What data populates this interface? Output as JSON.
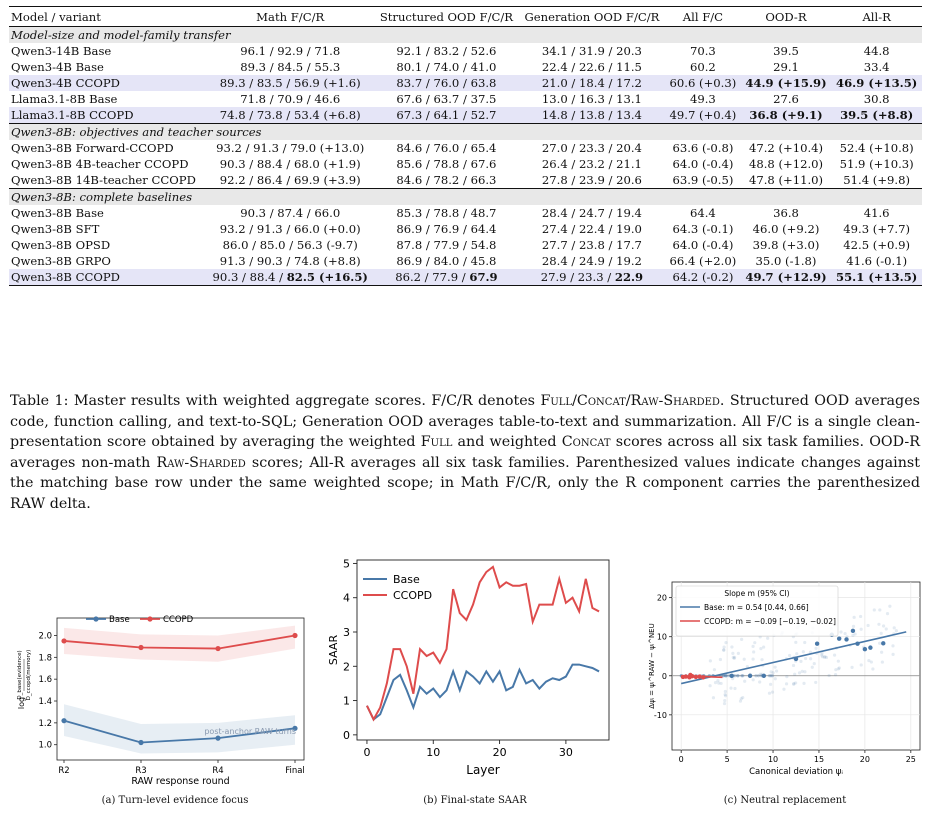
{
  "table": {
    "headers": [
      "Model / variant",
      "Math F/C/R",
      "Structured OOD F/C/R",
      "Generation OOD F/C/R",
      "All F/C",
      "OOD-R",
      "All-R"
    ],
    "sections": [
      {
        "title": "Model-size and model-family transfer",
        "rows": [
          {
            "cells": [
              "Qwen3-14B Base",
              "96.1 / 92.9 / 71.8",
              "92.1 / 83.2 / 52.6",
              "34.1 / 31.9 / 20.3",
              "70.3",
              "39.5",
              "44.8"
            ],
            "hl": false
          },
          {
            "cells": [
              "Qwen3-4B Base",
              "89.3 / 84.5 / 55.3",
              "80.1 / 74.0 / 41.0",
              "22.4 / 22.6 / 11.5",
              "60.2",
              "29.1",
              "33.4"
            ],
            "hl": false
          },
          {
            "cells": [
              "Qwen3-4B CCOPD",
              "89.3 / 83.5 / 56.9 (+1.6)",
              "83.7 / 76.0 / 63.8",
              "21.0 / 18.4 / 17.2",
              "60.6 (+0.3)",
              "44.9 (+15.9)",
              "46.9 (+13.5)"
            ],
            "hl": true,
            "bold": [
              5,
              6
            ]
          },
          {
            "cells": [
              "Llama3.1-8B Base",
              "71.8 / 70.9 / 46.6",
              "67.6 / 63.7 / 37.5",
              "13.0 / 16.3 / 13.1",
              "49.3",
              "27.6",
              "30.8"
            ],
            "hl": false
          },
          {
            "cells": [
              "Llama3.1-8B CCOPD",
              "74.8 / 73.8 / 53.4 (+6.8)",
              "67.3 / 64.1 / 52.7",
              "14.8 / 13.8 / 13.4",
              "49.7 (+0.4)",
              "36.8 (+9.1)",
              "39.5 (+8.8)"
            ],
            "hl": true,
            "bold": [
              5,
              6
            ]
          }
        ]
      },
      {
        "title": "Qwen3-8B: objectives and teacher sources",
        "rows": [
          {
            "cells": [
              "Qwen3-8B Forward-CCOPD",
              "93.2 / 91.3 / 79.0 (+13.0)",
              "84.6 / 76.0 / 65.4",
              "27.0 / 23.3 / 20.4",
              "63.6 (-0.8)",
              "47.2 (+10.4)",
              "52.4 (+10.8)"
            ],
            "hl": false
          },
          {
            "cells": [
              "Qwen3-8B 4B-teacher CCOPD",
              "90.3 / 88.4 / 68.0 (+1.9)",
              "85.6 / 78.8 / 67.6",
              "26.4 / 23.2 / 21.1",
              "64.0 (-0.4)",
              "48.8 (+12.0)",
              "51.9 (+10.3)"
            ],
            "hl": false
          },
          {
            "cells": [
              "Qwen3-8B 14B-teacher CCOPD",
              "92.2 / 86.4 / 69.9 (+3.9)",
              "84.6 / 78.2 / 66.3",
              "27.8 / 23.9 / 20.6",
              "63.9 (-0.5)",
              "47.8 (+11.0)",
              "51.4 (+9.8)"
            ],
            "hl": false
          }
        ]
      },
      {
        "title": "Qwen3-8B: complete baselines",
        "rows": [
          {
            "cells": [
              "Qwen3-8B Base",
              "90.3 / 87.4 / 66.0",
              "85.3 / 78.8 / 48.7",
              "28.4 / 24.7 / 19.4",
              "64.4",
              "36.8",
              "41.6"
            ],
            "hl": false
          },
          {
            "cells": [
              "Qwen3-8B SFT",
              "93.2 / 91.3 / 66.0 (+0.0)",
              "86.9 / 76.9 / 64.4",
              "27.4 / 22.4 / 19.0",
              "64.3 (-0.1)",
              "46.0 (+9.2)",
              "49.3 (+7.7)"
            ],
            "hl": false
          },
          {
            "cells": [
              "Qwen3-8B OPSD",
              "86.0 / 85.0 / 56.3 (-9.7)",
              "87.8 / 77.9 / 54.8",
              "27.7 / 23.8 / 17.7",
              "64.0 (-0.4)",
              "39.8 (+3.0)",
              "42.5 (+0.9)"
            ],
            "hl": false
          },
          {
            "cells": [
              "Qwen3-8B GRPO",
              "91.3 / 90.3 / 74.8 (+8.8)",
              "86.9 / 84.0 / 45.8",
              "28.4 / 24.9 / 19.2",
              "66.4 (+2.0)",
              "35.0 (-1.8)",
              "41.6 (-0.1)"
            ],
            "hl": false
          },
          {
            "cells": [
              "Qwen3-8B CCOPD",
              "90.3 / 88.4 / ",
              "86.2 / 77.9 / ",
              "27.9 / 23.3 / ",
              "64.2 (-0.2)",
              "49.7 (+12.9)",
              "55.1 (+13.5)"
            ],
            "hl": true,
            "bold": [
              5,
              6
            ],
            "tails": {
              "1": "82.5 (+16.5)",
              "2": "67.9",
              "3": "22.9"
            }
          }
        ]
      }
    ]
  },
  "caption": {
    "p1": "Table 1: Master results with weighted aggregate scores. F/C/R denotes ",
    "full": "Full",
    "s1": "/",
    "concat": "Concat",
    "s2": "/",
    "raw": "Raw-Sharded",
    "p2": ". Structured OOD averages code, function calling, and text-to-SQL; Generation OOD averages table-to-text and summarization. All F/C is a single clean-presentation score obtained by averaging the weighted ",
    "full2": "Full",
    "p3": " and weighted ",
    "concat2": "Concat",
    "p4": " scores across all six task families. OOD-R averages non-math ",
    "raw2": "Raw-Sharded",
    "p5": " scores; All-R averages all six task families. Parenthesized values indicate changes against the matching base row under the same weighted scope; in Math F/C/R, only the R component carries the parenthesized RAW delta."
  },
  "figures": {
    "a": {
      "caption": "(a) Turn-level evidence focus",
      "xlabel": "RAW response round",
      "ylabel": "log Dbase(evidence)/D(caused memory)",
      "ylabel_main": "log",
      "ylabel_frac_top": "D_base(evidence)",
      "ylabel_frac_bot": "D_ccopd(memory)",
      "annotation": "post-anchor RAW turns"
    },
    "b": {
      "caption": "(b) Final-state SAAR",
      "xlabel": "Layer",
      "ylabel": "SAAR"
    },
    "c": {
      "caption": "(c) Neutral replacement",
      "xlabel": "Canonical deviation ψᵢ",
      "ylabel": "Δψᵢ = ψᵢ^RAW − ψᵢ^NEU",
      "legend_title": "Slope m (95% CI)",
      "legend_base": "Base: m = 0.54 [0.44, 0.66]",
      "legend_ccopd": "CCOPD: m = −0.09 [−0.19, −0.02]"
    }
  },
  "chart_data": [
    {
      "type": "line",
      "title": "",
      "xlabel": "RAW response round",
      "ylabel": "log ratio",
      "categories": [
        "R2",
        "R3",
        "R4",
        "Final"
      ],
      "series": [
        {
          "name": "Base",
          "values": [
            1.22,
            1.02,
            1.06,
            1.15
          ]
        },
        {
          "name": "CCOPD",
          "values": [
            1.95,
            1.89,
            1.88,
            2.0
          ]
        }
      ],
      "band_base": {
        "lo": [
          1.08,
          0.92,
          0.93,
          1.0
        ],
        "hi": [
          1.37,
          1.19,
          1.2,
          1.27
        ]
      },
      "band_ccopd": {
        "lo": [
          1.83,
          1.78,
          1.76,
          1.88
        ],
        "hi": [
          2.07,
          2.01,
          2.0,
          2.09
        ]
      },
      "ylim": [
        0.86,
        2.16
      ],
      "yticks": [
        1.0,
        1.2,
        1.4,
        1.6,
        1.8,
        2.0
      ],
      "yticklabels": [
        "1.0",
        "1.2",
        "1.4",
        "1.6",
        "1.8",
        "2.0"
      ],
      "colors": {
        "Base": "#4878a8",
        "CCOPD": "#de4c4c"
      },
      "legend": "top"
    },
    {
      "type": "line",
      "title": "",
      "xlabel": "Layer",
      "ylabel": "SAAR",
      "x": [
        0,
        1,
        2,
        3,
        4,
        5,
        6,
        7,
        8,
        9,
        10,
        11,
        12,
        13,
        14,
        15,
        16,
        17,
        18,
        19,
        20,
        21,
        22,
        23,
        24,
        25,
        26,
        27,
        28,
        29,
        30,
        31,
        32,
        33,
        34,
        35
      ],
      "series": [
        {
          "name": "Base",
          "values": [
            0.85,
            0.45,
            0.6,
            1.1,
            1.6,
            1.75,
            1.3,
            0.8,
            1.4,
            1.2,
            1.35,
            1.1,
            1.3,
            1.85,
            1.3,
            1.85,
            1.7,
            1.5,
            1.85,
            1.55,
            1.85,
            1.3,
            1.4,
            1.9,
            1.5,
            1.6,
            1.35,
            1.55,
            1.65,
            1.6,
            1.7,
            2.05,
            2.05,
            2.0,
            1.95,
            1.85
          ]
        },
        {
          "name": "CCOPD",
          "values": [
            0.85,
            0.45,
            0.8,
            1.5,
            2.5,
            2.5,
            2.0,
            1.2,
            2.5,
            2.3,
            2.4,
            2.1,
            2.5,
            4.25,
            3.55,
            3.35,
            3.8,
            4.45,
            4.75,
            4.9,
            4.3,
            4.45,
            4.35,
            4.35,
            4.4,
            3.3,
            3.8,
            3.8,
            3.8,
            4.55,
            3.85,
            4.0,
            3.6,
            4.55,
            3.7,
            3.6
          ]
        }
      ],
      "xlim": [
        -1.5,
        36.5
      ],
      "ylim": [
        -0.15,
        5.1
      ],
      "xticks": [
        0,
        10,
        20,
        30
      ],
      "yticks": [
        0,
        1,
        2,
        3,
        4,
        5
      ],
      "colors": {
        "Base": "#4878a8",
        "CCOPD": "#de4c4c"
      },
      "legend": "top-left"
    },
    {
      "type": "scatter",
      "title": "",
      "xlabel": "Canonical deviation ψi",
      "ylabel": "Δψi",
      "xlim": [
        -1,
        26
      ],
      "ylim": [
        -19,
        24
      ],
      "xticks": [
        0,
        5,
        10,
        15,
        20,
        25
      ],
      "yticks": [
        -10,
        0,
        10,
        20
      ],
      "grid": true,
      "series": [
        {
          "name": "Base",
          "fit": {
            "slope": 0.54,
            "x0": 0,
            "x1": 24.5,
            "intercept": -2.0
          },
          "highlight": [
            [
              12.5,
              4.3
            ],
            [
              14.8,
              8.2
            ],
            [
              16.4,
              10.5
            ],
            [
              17.2,
              9.5
            ],
            [
              18.0,
              9.3
            ],
            [
              18.7,
              11.5
            ],
            [
              19.2,
              8.2
            ],
            [
              20.0,
              6.8
            ],
            [
              20.6,
              7.2
            ],
            [
              22.0,
              8.3
            ],
            [
              7.5,
              0
            ],
            [
              9.0,
              0
            ],
            [
              5.5,
              0
            ]
          ]
        },
        {
          "name": "CCOPD",
          "fit": {
            "slope": -0.09,
            "x0": 0,
            "x1": 4.5,
            "intercept": 0.0
          },
          "highlight": [
            [
              0.2,
              -0.3
            ],
            [
              0.5,
              -0.2
            ],
            [
              0.9,
              -0.4
            ],
            [
              1.2,
              -0.1
            ],
            [
              1.6,
              -0.3
            ],
            [
              2.0,
              -0.2
            ],
            [
              2.4,
              -0.4
            ],
            [
              1.0,
              0.2
            ]
          ]
        }
      ],
      "colors": {
        "Base": "#4878a8",
        "CCOPD": "#de4c4c"
      },
      "legend": "top-left"
    }
  ]
}
